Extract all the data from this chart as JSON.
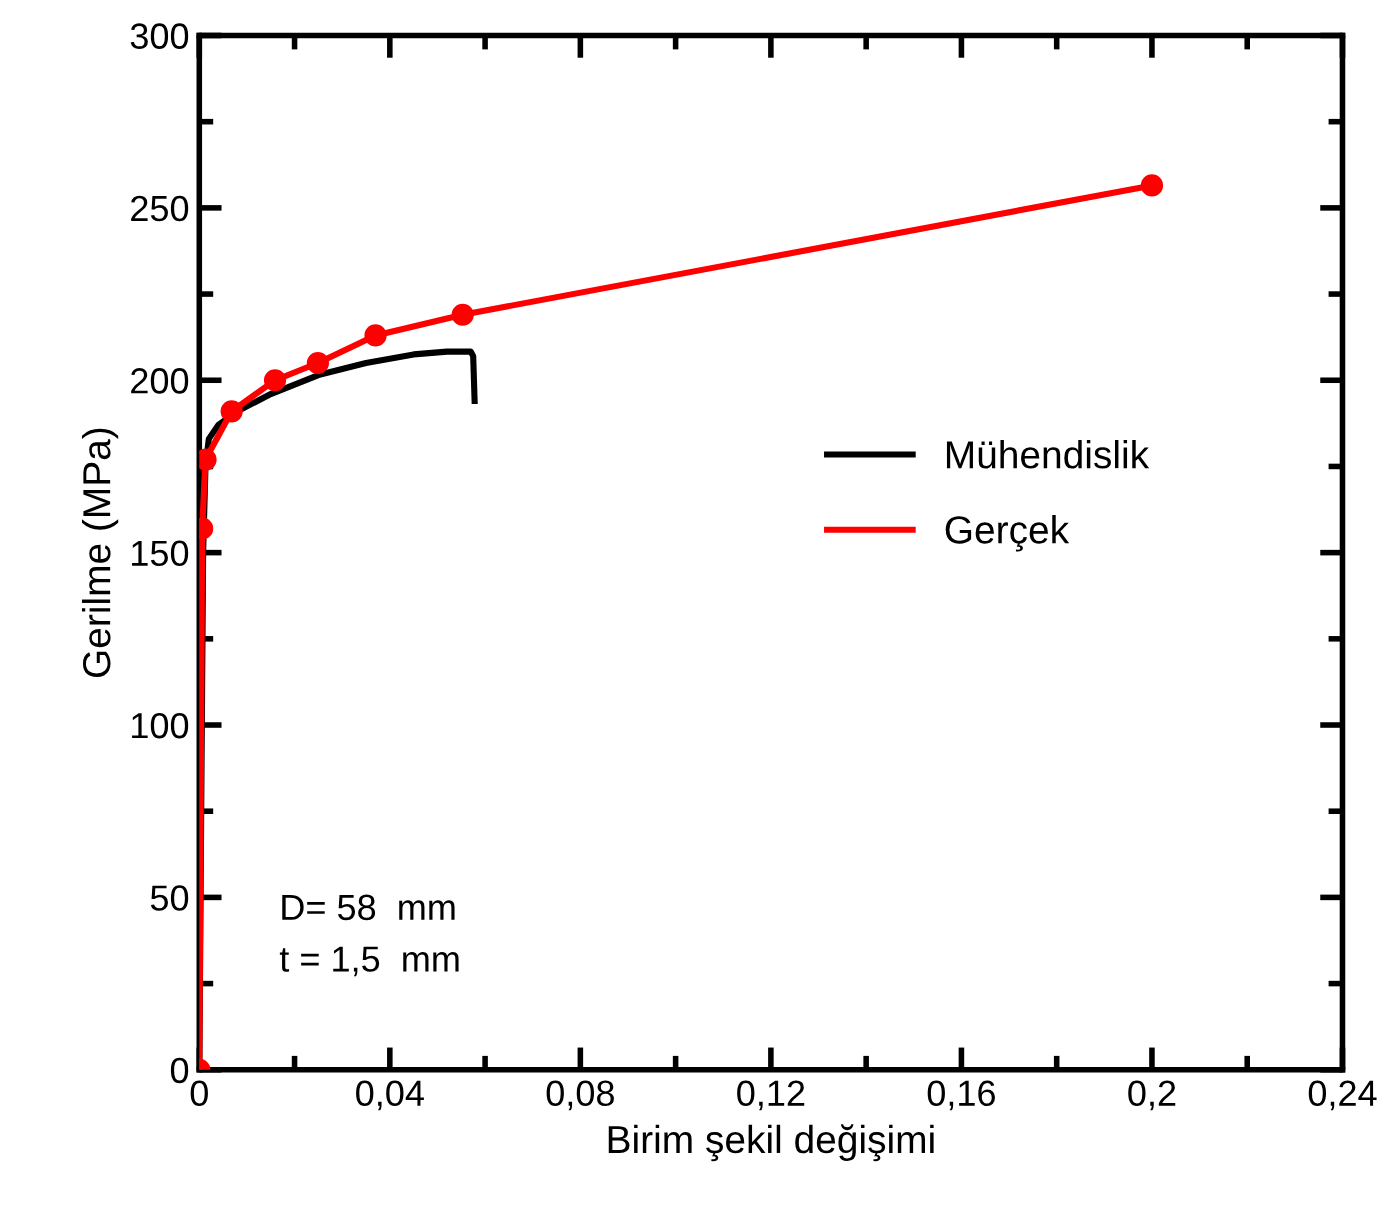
{
  "chart_data": {
    "type": "line",
    "xlabel": "Birim şekil değişimi",
    "ylabel": "Gerilme (MPa)",
    "series": [
      {
        "name": "Mühendislik",
        "color": "#000000",
        "marker": "none",
        "x": [
          0,
          0.0008,
          0.0013,
          0.002,
          0.004,
          0.008,
          0.015,
          0.025,
          0.035,
          0.045,
          0.052,
          0.057,
          0.0575,
          0.0578
        ],
        "values": [
          0,
          150,
          175,
          183,
          187,
          191,
          196,
          201.5,
          205,
          207.5,
          208.3,
          208.3,
          207,
          194
        ]
      },
      {
        "name": "Gerçek",
        "color": "#ff0000",
        "marker": "circle",
        "x": [
          0,
          0.0006,
          0.0013,
          0.0068,
          0.0159,
          0.0249,
          0.037,
          0.0553,
          0.2
        ],
        "values": [
          0,
          157,
          177,
          191,
          200,
          205,
          213,
          219,
          256.5
        ]
      }
    ],
    "xlim": [
      0,
      0.24
    ],
    "xticks": [
      0,
      {
        "value": 0.04,
        "label": "0,04"
      },
      {
        "value": 0.08,
        "label": "0,08"
      },
      {
        "value": 0.12,
        "label": "0,12"
      },
      {
        "value": 0.16,
        "label": "0,16"
      },
      {
        "value": 0.2,
        "label": "0,2"
      },
      {
        "value": 0.24,
        "label": "0,24"
      }
    ],
    "ylim": [
      0,
      300
    ],
    "yticks": [
      0,
      50,
      100,
      150,
      200,
      250,
      300
    ],
    "annotations": [
      "D= 58  mm",
      "t = 1,5  mm"
    ],
    "legend": "center",
    "grid": false,
    "line_style": "solid"
  }
}
